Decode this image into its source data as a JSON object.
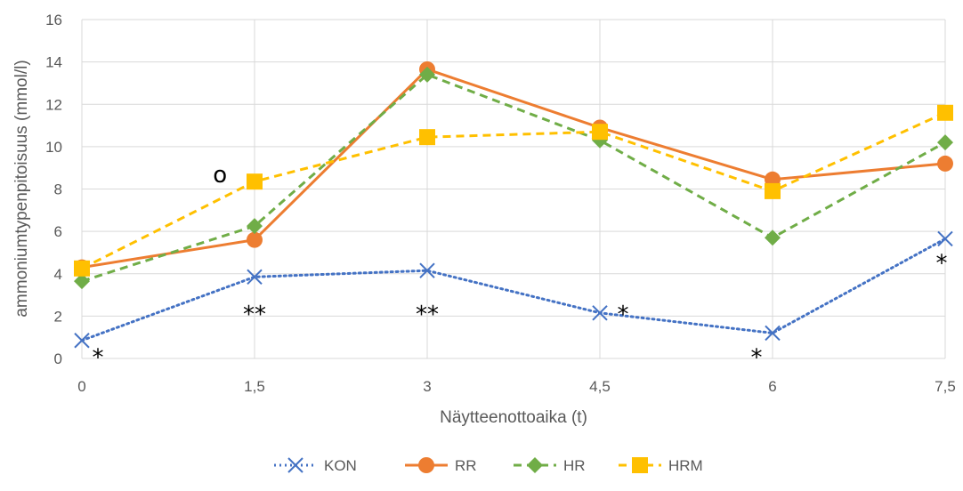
{
  "chart_data": {
    "type": "line",
    "title": "",
    "xlabel": "Näytteenottoaika (t)",
    "ylabel": "ammoniumtypenpitoisuus (mmol/l)",
    "categories": [
      "0",
      "1,5",
      "3",
      "4,5",
      "6",
      "7,5"
    ],
    "x": [
      0,
      1.5,
      3,
      4.5,
      6,
      7.5
    ],
    "ylim": [
      0,
      16
    ],
    "yticks": [
      "0",
      "2",
      "4",
      "6",
      "8",
      "10",
      "12",
      "14",
      "16"
    ],
    "grid": true,
    "legend_position": "bottom",
    "series": [
      {
        "name": "KON",
        "values": [
          0.85,
          3.85,
          4.15,
          2.15,
          1.2,
          5.65
        ],
        "color": "#4472C4",
        "line": "dotted",
        "marker": "x"
      },
      {
        "name": "RR",
        "values": [
          4.3,
          5.6,
          13.65,
          10.9,
          8.45,
          9.2
        ],
        "color": "#ED7D31",
        "line": "solid",
        "marker": "circle"
      },
      {
        "name": "HR",
        "values": [
          3.65,
          6.25,
          13.4,
          10.3,
          5.7,
          10.2
        ],
        "color": "#70AD47",
        "line": "dashed",
        "marker": "diamond"
      },
      {
        "name": "HRM",
        "values": [
          4.25,
          8.35,
          10.45,
          10.7,
          7.9,
          11.6
        ],
        "color": "#FFC000",
        "line": "dashed",
        "marker": "square"
      }
    ],
    "annotations": [
      {
        "text": "*",
        "x": 0,
        "y": 0.35
      },
      {
        "text": "**",
        "x": 1.5,
        "y": 2.4
      },
      {
        "text": "**",
        "x": 3,
        "y": 2.4
      },
      {
        "text": "*",
        "x": 4.5,
        "y": 2.4
      },
      {
        "text": "*",
        "x": 6,
        "y": 0.35
      },
      {
        "text": "*",
        "x": 7.5,
        "y": 4.8
      },
      {
        "text": "o",
        "x": 1.2,
        "y": 8.6
      }
    ]
  }
}
